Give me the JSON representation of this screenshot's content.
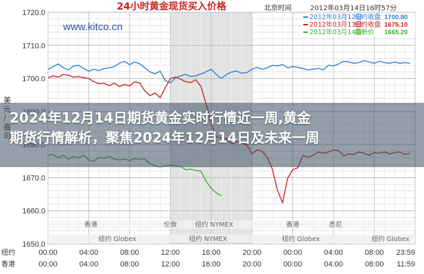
{
  "headline": {
    "line1": "2024年12月14日期货黄金实时行情近一周,黄金",
    "line2": "期货行情解析，聚焦2024年12月14日及未来一周"
  },
  "chart_data": {
    "type": "line",
    "title": "24小时黄金现货买入价格",
    "watermark": "www.kitco.cn",
    "timezone_label": "北京时间",
    "datetime_label": "2012年03月14日16时57分",
    "ylabel_left": "美元/盎司",
    "ylim": [
      1650,
      1720
    ],
    "yticks": [
      "1720.0",
      "1710.0",
      "1700.0",
      "1690.0",
      "1680.0",
      "1670.0",
      "1660.0",
      "1650.0"
    ],
    "xticks": [
      "00:00",
      "04:00",
      "08:00",
      "12:00",
      "16:00",
      "20:00"
    ],
    "x_start_label": "00:00",
    "x_end_label": "23:59",
    "x_start_label2": "00:00",
    "x_end_label2": "11:59",
    "bottom_left_label": "纽约 Globex",
    "axis_corner_top": "纽约",
    "axis_corner_bottom": "香港",
    "sessions": [
      {
        "name": "香港",
        "at": 4.2
      },
      {
        "name": "伦敦",
        "at": 12.0
      },
      {
        "name": "纽约 NYMEX",
        "at": 16.3
      },
      {
        "name": "香港",
        "at": 24.0
      },
      {
        "name": "悉尼",
        "at": 28.2
      }
    ],
    "globex_labels": [
      {
        "name": "纽约 Globex",
        "at": 6.8
      },
      {
        "name": "纽约 NYMEX",
        "at": 15.7
      },
      {
        "name": "纽约 Globex",
        "at": 24.8
      },
      {
        "name": "纽约 Globex",
        "at": 33.6
      }
    ],
    "legend": [
      {
        "date": "2012年03月12日",
        "label": "纽约收盘",
        "value": "1700.80",
        "color": "#2a7fd4"
      },
      {
        "date": "2012年03月13日",
        "label": "纽约收盘",
        "value": "1675.10",
        "color": "#cc2222"
      },
      {
        "date": "2012年03月14日",
        "label": "最新价",
        "value": "1665.20",
        "color": "#44aa33"
      }
    ],
    "series": [
      {
        "name": "2012年03月12日",
        "color": "#2a7fd4",
        "x": [
          0,
          0.5,
          1,
          1.5,
          2,
          2.5,
          3,
          3.5,
          4,
          4.5,
          5,
          5.5,
          6,
          6.5,
          7,
          7.5,
          8,
          8.5,
          9,
          9.5,
          10,
          10.5,
          11,
          11.5,
          12,
          12.5,
          13,
          13.5,
          14,
          14.5,
          15,
          15.5,
          16,
          16.5,
          17,
          17.5,
          18,
          18.5,
          19,
          19.5,
          20,
          20.5,
          21,
          21.5,
          22,
          22.5,
          23,
          23.5,
          24,
          24.5,
          25,
          25.5,
          26,
          26.5,
          27,
          27.5,
          28,
          28.5,
          29,
          29.5,
          30,
          30.5,
          31,
          31.5,
          32,
          32.5,
          33,
          33.5,
          34,
          34.5,
          35,
          35.5
        ],
        "values": [
          1702.8,
          1703.6,
          1704.4,
          1703.2,
          1702.6,
          1703.8,
          1704.0,
          1703.0,
          1702.2,
          1702.8,
          1702.4,
          1703.0,
          1703.2,
          1703.6,
          1704.6,
          1705.2,
          1704.2,
          1705.0,
          1704.4,
          1703.2,
          1702.0,
          1701.4,
          1702.2,
          1699.4,
          1698.6,
          1700.2,
          1700.8,
          1701.2,
          1700.6,
          1700.8,
          1701.4,
          1702.0,
          1702.8,
          1701.2,
          1700.0,
          1701.2,
          1702.0,
          1702.2,
          1701.6,
          1701.8,
          1702.8,
          1703.4,
          1702.8,
          1703.2,
          1704.0,
          1703.8,
          1704.2,
          1703.2,
          1703.6,
          1703.4,
          1703.0,
          1702.6,
          1702.8,
          1703.0,
          1702.6,
          1704.0,
          1703.8,
          1704.4,
          1705.2,
          1705.0,
          1704.6,
          1704.8,
          1705.4,
          1705.0,
          1704.6,
          1705.2,
          1704.8,
          1704.6,
          1705.0,
          1704.6,
          1704.8,
          1704.6
        ]
      },
      {
        "name": "2012年03月13日",
        "color": "#cc2222",
        "x": [
          0,
          0.5,
          1,
          1.5,
          2,
          2.5,
          3,
          3.5,
          4,
          4.5,
          5,
          5.5,
          6,
          6.5,
          7,
          7.5,
          8,
          8.5,
          9,
          9.5,
          10,
          10.5,
          11,
          11.5,
          12,
          12.5,
          13,
          13.5,
          14,
          14.5,
          15,
          15.5,
          16,
          16.5,
          17,
          17.5,
          18,
          18.5,
          19,
          19.5,
          20,
          20.5,
          21,
          21.5,
          22,
          22.5,
          23,
          23.5,
          24,
          24.5,
          25,
          25.5,
          26,
          26.5,
          27,
          27.5,
          28,
          28.5,
          29,
          29.5,
          30,
          30.5,
          31,
          31.5,
          32,
          32.5,
          33,
          33.5,
          34,
          34.5,
          35,
          35.5
        ],
        "values": [
          1700.2,
          1700.8,
          1700.4,
          1701.2,
          1701.0,
          1700.4,
          1700.6,
          1700.2,
          1700.0,
          1699.0,
          1698.4,
          1698.6,
          1697.8,
          1698.6,
          1697.6,
          1698.2,
          1697.8,
          1699.0,
          1698.6,
          1696.2,
          1694.8,
          1695.6,
          1694.2,
          1697.2,
          1700.0,
          1700.4,
          1699.8,
          1699.0,
          1698.8,
          1699.6,
          1697.6,
          1692.4,
          1686.4,
          1682.4,
          1682.0,
          1681.8,
          1680.2,
          1681.0,
          1680.6,
          1679.8,
          1677.2,
          1678.4,
          1678.0,
          1676.2,
          1672.6,
          1666.2,
          1662.4,
          1669.8,
          1672.4,
          1673.0,
          1676.8,
          1676.2,
          1676.8,
          1677.8,
          1677.4,
          1677.8,
          1678.4,
          1678.2,
          1676.6,
          1677.2,
          1677.0,
          1677.8,
          1677.4,
          1676.8,
          1677.6,
          1677.4,
          1677.8,
          1677.2,
          1677.6,
          1677.8,
          1677.0,
          1677.4
        ]
      },
      {
        "name": "2012年03月14日",
        "color": "#44aa33",
        "x": [
          0,
          0.5,
          1,
          1.5,
          2,
          2.5,
          3,
          3.5,
          4,
          4.5,
          5,
          5.5,
          6,
          6.5,
          7,
          7.5,
          8,
          8.5,
          9,
          9.5,
          10,
          10.5,
          11,
          11.5,
          12,
          12.5,
          13,
          13.5,
          14,
          14.5,
          15,
          15.5,
          16,
          16.5,
          17
        ],
        "values": [
          1676.8,
          1677.0,
          1676.0,
          1676.8,
          1675.6,
          1676.4,
          1676.0,
          1676.8,
          1675.4,
          1675.0,
          1676.2,
          1675.8,
          1676.4,
          1675.6,
          1675.4,
          1675.6,
          1675.2,
          1675.8,
          1675.6,
          1675.6,
          1674.2,
          1673.6,
          1673.2,
          1673.6,
          1673.8,
          1673.6,
          1673.4,
          1672.4,
          1672.6,
          1672.2,
          1672.0,
          1669.0,
          1666.8,
          1665.4,
          1664.6
        ]
      }
    ],
    "xlim": [
      0,
      36
    ],
    "highlight_range": [
      12,
      20
    ],
    "grid": true
  }
}
